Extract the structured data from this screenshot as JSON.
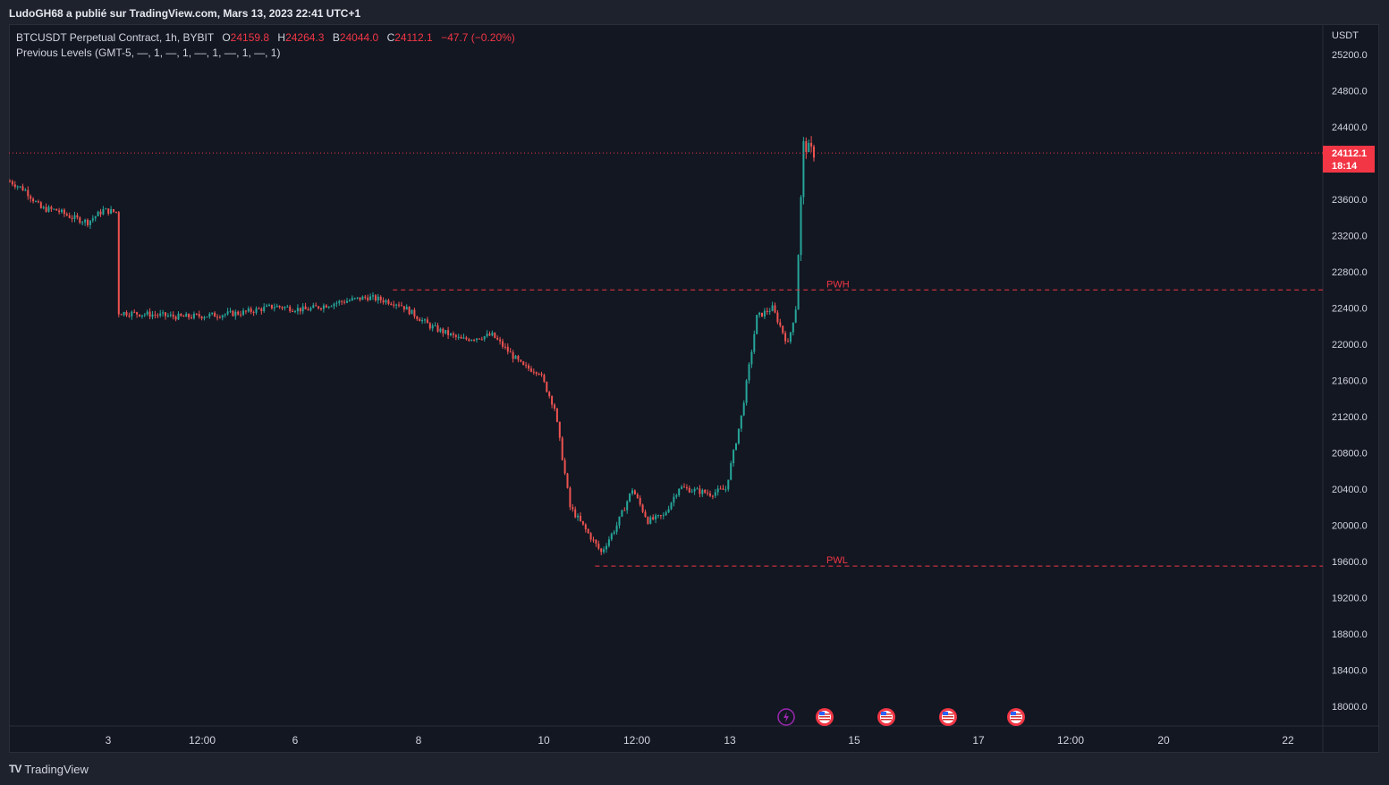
{
  "header": {
    "publisher": "LudoGH68 a publié sur TradingView.com, Mars 13, 2023 22:41 UTC+1"
  },
  "legend": {
    "symbol": "BTCUSDT Perpetual Contract, 1h, BYBIT",
    "o_label": "O",
    "o": "24159.8",
    "h_label": "H",
    "h": "24264.3",
    "b_label": "B",
    "b": "24044.0",
    "c_label": "C",
    "c": "24112.1",
    "change": "−47.7 (−0.20%)",
    "indicator": "Previous Levels (GMT-5, —, 1, —, 1, ––, 1, ––, 1, —, 1)"
  },
  "price_axis": {
    "unit": "USDT",
    "last_price": "24112.1",
    "countdown": "18:14"
  },
  "footer": {
    "brand": "TradingView",
    "logo": "TV"
  },
  "colors": {
    "up": "#26a69a",
    "down": "#ef5350",
    "level": "#f23645",
    "background": "#131722",
    "axis_text": "#d1d4dc"
  },
  "chart_data": {
    "type": "candlestick",
    "title": "BTCUSDT Perpetual Contract, 1h, BYBIT",
    "y_ticks": [
      "25200.0",
      "24800.0",
      "24400.0",
      "24000.0",
      "23600.0",
      "23200.0",
      "22800.0",
      "22400.0",
      "22000.0",
      "21600.0",
      "21200.0",
      "20800.0",
      "20400.0",
      "20000.0",
      "19600.0",
      "19200.0",
      "18800.0",
      "18400.0",
      "18000.0"
    ],
    "x_ticks": [
      "3",
      "12:00",
      "6",
      "8",
      "10",
      "12:00",
      "13",
      "15",
      "17",
      "12:00",
      "20",
      "22"
    ],
    "ylim": [
      17800,
      25300
    ],
    "price_path": [
      [
        "2023-03-01 00:00",
        23800
      ],
      [
        "2023-03-01 06:00",
        23700
      ],
      [
        "2023-03-01 12:00",
        23500
      ],
      [
        "2023-03-01 18:00",
        23480
      ],
      [
        "2023-03-02 00:00",
        23400
      ],
      [
        "2023-03-02 06:00",
        23350
      ],
      [
        "2023-03-02 12:00",
        23480
      ],
      [
        "2023-03-02 17:00",
        23460
      ],
      [
        "2023-03-02 18:00",
        22350
      ],
      [
        "2023-03-03 06:00",
        22330
      ],
      [
        "2023-03-03 18:00",
        22300
      ],
      [
        "2023-03-04 06:00",
        22320
      ],
      [
        "2023-03-04 18:00",
        22350
      ],
      [
        "2023-03-05 06:00",
        22420
      ],
      [
        "2023-03-05 18:00",
        22380
      ],
      [
        "2023-03-06 06:00",
        22460
      ],
      [
        "2023-03-06 18:00",
        22520
      ],
      [
        "2023-03-07 06:00",
        22450
      ],
      [
        "2023-03-07 18:00",
        22200
      ],
      [
        "2023-03-08 06:00",
        22050
      ],
      [
        "2023-03-08 18:00",
        22100
      ],
      [
        "2023-03-09 06:00",
        21750
      ],
      [
        "2023-03-09 12:00",
        21700
      ],
      [
        "2023-03-09 18:00",
        21300
      ],
      [
        "2023-03-10 00:00",
        20200
      ],
      [
        "2023-03-10 06:00",
        19950
      ],
      [
        "2023-03-10 12:00",
        19700
      ],
      [
        "2023-03-10 18:00",
        20000
      ],
      [
        "2023-03-11 00:00",
        20400
      ],
      [
        "2023-03-11 06:00",
        20050
      ],
      [
        "2023-03-11 12:00",
        20100
      ],
      [
        "2023-03-11 18:00",
        20420
      ],
      [
        "2023-03-12 06:00",
        20350
      ],
      [
        "2023-03-12 12:00",
        20400
      ],
      [
        "2023-03-12 18:00",
        21200
      ],
      [
        "2023-03-13 00:00",
        22300
      ],
      [
        "2023-03-13 06:00",
        22400
      ],
      [
        "2023-03-13 12:00",
        22000
      ],
      [
        "2023-03-13 15:00",
        22400
      ],
      [
        "2023-03-13 18:00",
        24200
      ],
      [
        "2023-03-13 22:00",
        24112
      ]
    ],
    "levels": [
      {
        "label": "PWH",
        "value": 22600,
        "from": "2023-03-07 04:00"
      },
      {
        "label": "PWL",
        "value": 19550,
        "from": "2023-03-10 10:00"
      }
    ],
    "last_price": 24112.1,
    "events": [
      "lightning",
      "us-flag",
      "us-flag",
      "us-flag",
      "us-flag"
    ]
  }
}
